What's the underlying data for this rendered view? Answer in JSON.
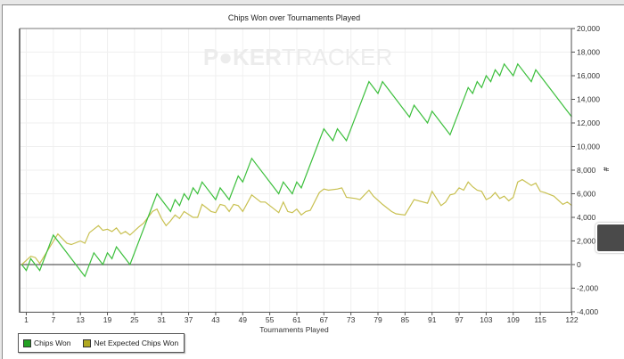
{
  "chart_data": {
    "type": "line",
    "title": "Chips Won over Tournaments Played",
    "xlabel": "Tournaments Played",
    "ylabel": "#",
    "watermark": "POKERTRACKER",
    "xlim": [
      0,
      122
    ],
    "ylim": [
      -4000,
      20000
    ],
    "x_ticks": [
      1,
      7,
      13,
      19,
      25,
      31,
      37,
      43,
      49,
      55,
      61,
      67,
      73,
      79,
      85,
      91,
      97,
      103,
      109,
      115,
      122
    ],
    "y_ticks": [
      -4000,
      -2000,
      0,
      2000,
      4000,
      6000,
      8000,
      10000,
      12000,
      14000,
      16000,
      18000,
      20000
    ],
    "y_tick_labels": [
      "-4,000",
      "-2,000",
      "0",
      "2,000",
      "4,000",
      "6,000",
      "8,000",
      "10,000",
      "12,000",
      "14,000",
      "16,000",
      "18,000",
      "20,000"
    ],
    "y_axis_side": "right",
    "grid": true,
    "legend_position": "bottom-left",
    "series": [
      {
        "name": "Chips Won",
        "color": "#3cbf3c",
        "points": [
          [
            0,
            0
          ],
          [
            1,
            -500
          ],
          [
            2,
            500
          ],
          [
            4,
            -500
          ],
          [
            7,
            2500
          ],
          [
            14,
            -1000
          ],
          [
            16,
            1000
          ],
          [
            18,
            0
          ],
          [
            19,
            1000
          ],
          [
            20,
            500
          ],
          [
            21,
            1500
          ],
          [
            24,
            0
          ],
          [
            30,
            6000
          ],
          [
            33,
            4500
          ],
          [
            34,
            5500
          ],
          [
            35,
            5000
          ],
          [
            36,
            6000
          ],
          [
            37,
            5500
          ],
          [
            38,
            6500
          ],
          [
            39,
            6000
          ],
          [
            40,
            7000
          ],
          [
            43,
            5500
          ],
          [
            44,
            6500
          ],
          [
            46,
            5500
          ],
          [
            48,
            7500
          ],
          [
            49,
            7000
          ],
          [
            51,
            9000
          ],
          [
            57,
            6000
          ],
          [
            58,
            7000
          ],
          [
            60,
            6000
          ],
          [
            61,
            7000
          ],
          [
            62,
            6500
          ],
          [
            67,
            11500
          ],
          [
            69,
            10500
          ],
          [
            70,
            11500
          ],
          [
            72,
            10500
          ],
          [
            77,
            15500
          ],
          [
            79,
            14500
          ],
          [
            80,
            15500
          ],
          [
            86,
            12500
          ],
          [
            87,
            13500
          ],
          [
            90,
            12000
          ],
          [
            91,
            13000
          ],
          [
            95,
            11000
          ],
          [
            99,
            15000
          ],
          [
            100,
            14500
          ],
          [
            101,
            15500
          ],
          [
            102,
            15000
          ],
          [
            103,
            16000
          ],
          [
            104,
            15500
          ],
          [
            105,
            16500
          ],
          [
            106,
            16000
          ],
          [
            107,
            17000
          ],
          [
            109,
            16000
          ],
          [
            110,
            17000
          ],
          [
            113,
            15500
          ],
          [
            114,
            16500
          ],
          [
            122,
            12500
          ]
        ]
      },
      {
        "name": "Net Expected Chips Won",
        "color": "#c8c050",
        "points": [
          [
            0,
            0
          ],
          [
            2,
            700
          ],
          [
            3,
            600
          ],
          [
            4,
            100
          ],
          [
            8,
            2600
          ],
          [
            10,
            1800
          ],
          [
            11,
            1700
          ],
          [
            13,
            2000
          ],
          [
            14,
            1800
          ],
          [
            15,
            2700
          ],
          [
            17,
            3300
          ],
          [
            18,
            2900
          ],
          [
            19,
            3000
          ],
          [
            20,
            2800
          ],
          [
            21,
            3100
          ],
          [
            22,
            2600
          ],
          [
            23,
            2800
          ],
          [
            24,
            2500
          ],
          [
            26,
            3200
          ],
          [
            27,
            3500
          ],
          [
            29,
            4500
          ],
          [
            30,
            4700
          ],
          [
            31,
            3900
          ],
          [
            32,
            3300
          ],
          [
            33,
            3700
          ],
          [
            34,
            4200
          ],
          [
            35,
            3900
          ],
          [
            36,
            4500
          ],
          [
            38,
            4000
          ],
          [
            39,
            4000
          ],
          [
            40,
            5100
          ],
          [
            41,
            4800
          ],
          [
            42,
            4500
          ],
          [
            43,
            4400
          ],
          [
            44,
            5100
          ],
          [
            45,
            5000
          ],
          [
            46,
            4500
          ],
          [
            47,
            5100
          ],
          [
            48,
            5000
          ],
          [
            49,
            4500
          ],
          [
            51,
            5900
          ],
          [
            53,
            5300
          ],
          [
            54,
            5300
          ],
          [
            57,
            4400
          ],
          [
            58,
            5300
          ],
          [
            59,
            4500
          ],
          [
            60,
            4400
          ],
          [
            61,
            4700
          ],
          [
            62,
            4200
          ],
          [
            63,
            4500
          ],
          [
            64,
            4600
          ],
          [
            66,
            6100
          ],
          [
            67,
            6400
          ],
          [
            68,
            6300
          ],
          [
            70,
            6400
          ],
          [
            71,
            6500
          ],
          [
            72,
            5700
          ],
          [
            74,
            5600
          ],
          [
            75,
            5500
          ],
          [
            77,
            6300
          ],
          [
            78,
            5800
          ],
          [
            80,
            5100
          ],
          [
            82,
            4500
          ],
          [
            83,
            4300
          ],
          [
            85,
            4200
          ],
          [
            87,
            5500
          ],
          [
            90,
            5200
          ],
          [
            91,
            6200
          ],
          [
            93,
            5000
          ],
          [
            94,
            5300
          ],
          [
            95,
            5900
          ],
          [
            96,
            6000
          ],
          [
            97,
            6500
          ],
          [
            98,
            6300
          ],
          [
            99,
            7000
          ],
          [
            100,
            6600
          ],
          [
            101,
            6300
          ],
          [
            102,
            6200
          ],
          [
            103,
            5500
          ],
          [
            104,
            5700
          ],
          [
            105,
            6100
          ],
          [
            106,
            5600
          ],
          [
            107,
            5800
          ],
          [
            108,
            5400
          ],
          [
            109,
            5700
          ],
          [
            110,
            7000
          ],
          [
            111,
            7200
          ],
          [
            113,
            6700
          ],
          [
            114,
            6900
          ],
          [
            115,
            6200
          ],
          [
            116,
            6100
          ],
          [
            118,
            5800
          ],
          [
            120,
            5100
          ],
          [
            121,
            5300
          ],
          [
            122,
            5000
          ]
        ]
      }
    ]
  },
  "legend": {
    "items": [
      {
        "label": "Chips Won",
        "color": "#22a022"
      },
      {
        "label": "Net Expected Chips Won",
        "color": "#b0a820"
      }
    ]
  }
}
